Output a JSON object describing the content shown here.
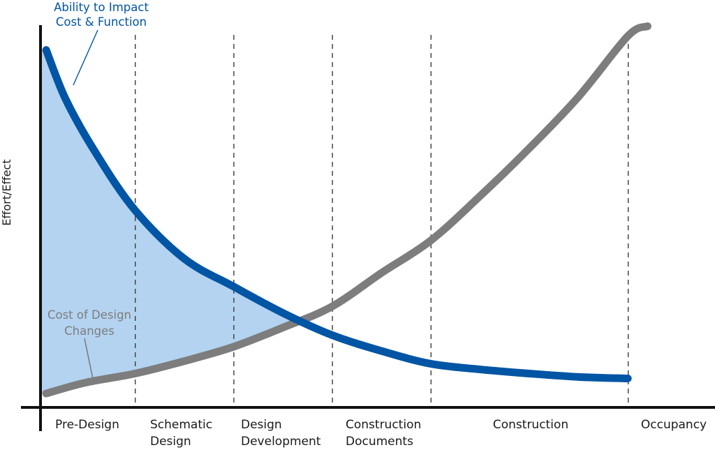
{
  "chart_data": {
    "type": "line",
    "title": "",
    "xlabel": "",
    "ylabel": "Effort/Effect",
    "phases": [
      {
        "lines": [
          "Pre-Design"
        ]
      },
      {
        "lines": [
          "Schematic",
          "Design"
        ]
      },
      {
        "lines": [
          "Design",
          "Development"
        ]
      },
      {
        "lines": [
          "Construction",
          "Documents"
        ]
      },
      {
        "lines": [
          "Construction"
        ]
      },
      {
        "lines": [
          "Occupancy"
        ]
      }
    ],
    "phase_boundaries": [
      1,
      2,
      3,
      4,
      6
    ],
    "xlim": [
      0,
      6.3
    ],
    "ylim": [
      0,
      1
    ],
    "grid": false,
    "series": [
      {
        "name": "Ability to Impact Cost & Function",
        "name_lines": [
          "Ability to Impact",
          "Cost & Function"
        ],
        "color": "#0055a4",
        "x": [
          0.1,
          0.3,
          0.6,
          1.0,
          1.5,
          2.0,
          2.5,
          3.0,
          3.5,
          4.0,
          4.5,
          5.0,
          5.5,
          6.0
        ],
        "y": [
          0.947,
          0.815,
          0.675,
          0.522,
          0.393,
          0.319,
          0.249,
          0.19,
          0.148,
          0.114,
          0.099,
          0.088,
          0.079,
          0.075
        ]
      },
      {
        "name": "Cost of Design Changes",
        "name_lines": [
          "Cost of Design",
          "Changes"
        ],
        "color": "#7d7d7d",
        "x": [
          0.1,
          0.5,
          1.0,
          1.5,
          2.0,
          2.5,
          3.0,
          3.5,
          4.0,
          4.5,
          5.0,
          5.5,
          6.0,
          6.2
        ],
        "y": [
          0.035,
          0.064,
          0.088,
          0.121,
          0.159,
          0.21,
          0.266,
          0.355,
          0.441,
          0.559,
          0.686,
          0.823,
          0.984,
          1.01
        ]
      }
    ],
    "shaded_region": {
      "description": "area between the two curves from the start up to their intersection",
      "color": "#b3d3f0"
    }
  }
}
